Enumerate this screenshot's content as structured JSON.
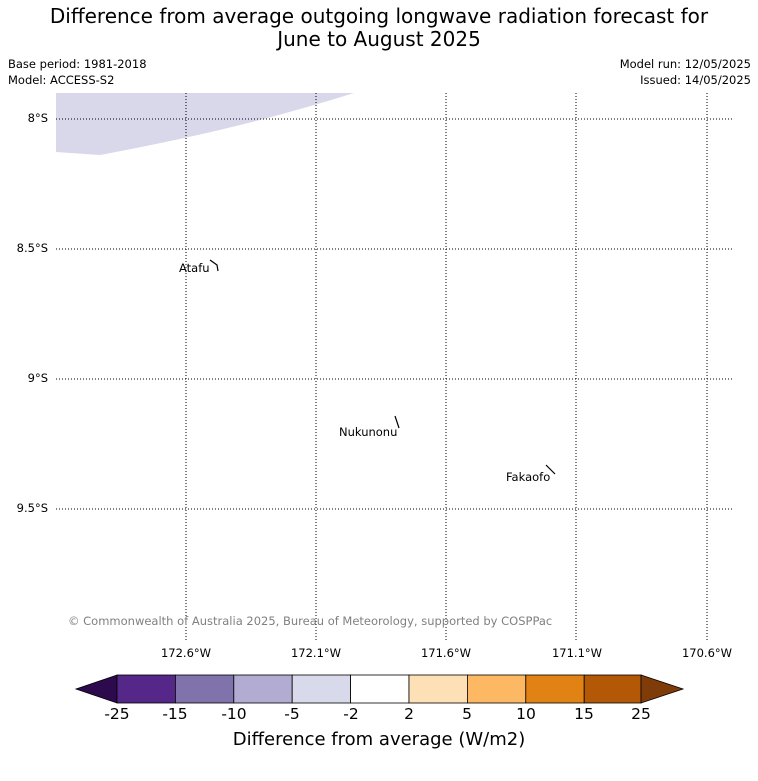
{
  "title_line1": "Difference from average outgoing longwave radiation forecast for",
  "title_line2": "June to August 2025",
  "meta": {
    "base_period": "Base period: 1981-2018",
    "model": "Model: ACCESS-S2",
    "model_run": "Model run: 12/05/2025",
    "issued": "Issued: 14/05/2025"
  },
  "map": {
    "lat_labels": [
      "8°S",
      "8.5°S",
      "9°S",
      "9.5°S"
    ],
    "lon_labels": [
      "172.6°W",
      "172.1°W",
      "171.6°W",
      "171.1°W",
      "170.6°W"
    ],
    "places": [
      "Atafu",
      "Nukunonu",
      "Fakaofo"
    ],
    "anomaly_region_color": "#d8d8ea",
    "copyright": "© Commonwealth of Australia 2025, Bureau of Meteorology, supported by COSPPac"
  },
  "colorbar": {
    "title": "Difference from average (W/m2)",
    "ticks": [
      "-25",
      "-15",
      "-10",
      "-5",
      "-2",
      "2",
      "5",
      "10",
      "15",
      "25"
    ],
    "under_color": "#2d0a4e",
    "over_color": "#7f3b08",
    "colors": [
      "#542788",
      "#8073ac",
      "#b2abd2",
      "#d8daeb",
      "#ffffff",
      "#fee0b6",
      "#fdb863",
      "#e08214",
      "#b35806"
    ]
  }
}
